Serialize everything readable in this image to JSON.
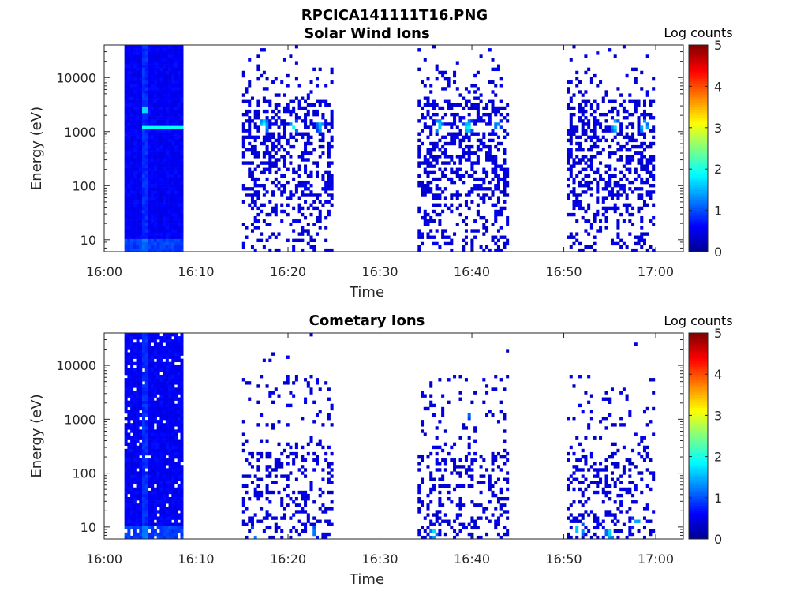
{
  "figure_title": "RPCICA141111T16.PNG",
  "colors": {
    "colormap": [
      "#00008f",
      "#0000ff",
      "#0080ff",
      "#00ffff",
      "#80ff80",
      "#ffff00",
      "#ff8000",
      "#ff0000",
      "#800000"
    ],
    "axis": "#262626",
    "background": "#ffffff"
  },
  "chart_data": [
    {
      "type": "heatmap",
      "title": "Solar Wind Ions",
      "xlabel": "Time",
      "ylabel": "Energy (eV)",
      "x_tick_labels": [
        "16:00",
        "16:10",
        "16:20",
        "16:30",
        "16:40",
        "16:50",
        "17:00"
      ],
      "x_range_minutes": [
        0,
        63
      ],
      "y_scale": "log",
      "y_tick_labels": [
        "10",
        "100",
        "1000",
        "10000"
      ],
      "y_range": [
        6,
        40000
      ],
      "colorbar": {
        "label": "Log counts",
        "range": [
          0,
          5
        ],
        "tick_labels": [
          "0",
          "1",
          "2",
          "3",
          "4",
          "5"
        ]
      },
      "dense_block": {
        "t_start_min": 2.2,
        "t_end_min": 8.3
      },
      "activity_bursts": [
        {
          "t_start_min": 15.0,
          "t_end_min": 24.7,
          "peaks": [
            {
              "t_min": 17.2,
              "energy_ev": 1300,
              "log_counts": 2.0
            },
            {
              "t_min": 20.4,
              "energy_ev": 1200,
              "log_counts": 1.8
            },
            {
              "t_min": 23.4,
              "energy_ev": 1300,
              "log_counts": 1.6
            }
          ]
        },
        {
          "t_start_min": 34.1,
          "t_end_min": 43.8,
          "peaks": [
            {
              "t_min": 36.2,
              "energy_ev": 1300,
              "log_counts": 1.8
            },
            {
              "t_min": 39.4,
              "energy_ev": 1200,
              "log_counts": 1.9
            },
            {
              "t_min": 42.6,
              "energy_ev": 1300,
              "log_counts": 1.4
            }
          ]
        },
        {
          "t_start_min": 50.3,
          "t_end_min": 59.8,
          "peaks": [
            {
              "t_min": 55.4,
              "energy_ev": 1300,
              "log_counts": 1.7
            },
            {
              "t_min": 58.6,
              "energy_ev": 1200,
              "log_counts": 1.8
            }
          ]
        }
      ]
    },
    {
      "type": "heatmap",
      "title": "Cometary Ions",
      "xlabel": "Time",
      "ylabel": "Energy (eV)",
      "x_tick_labels": [
        "16:00",
        "16:10",
        "16:20",
        "16:30",
        "16:40",
        "16:50",
        "17:00"
      ],
      "x_range_minutes": [
        0,
        63
      ],
      "y_scale": "log",
      "y_tick_labels": [
        "10",
        "100",
        "1000",
        "10000"
      ],
      "y_range": [
        6,
        40000
      ],
      "colorbar": {
        "label": "Log counts",
        "range": [
          0,
          5
        ],
        "tick_labels": [
          "0",
          "1",
          "2",
          "3",
          "4",
          "5"
        ]
      },
      "dense_block": {
        "t_start_min": 2.2,
        "t_end_min": 8.3
      },
      "activity_bursts": [
        {
          "t_start_min": 15.0,
          "t_end_min": 24.7,
          "peaks": [
            {
              "t_min": 16.3,
              "energy_ev": 8,
              "log_counts": 1.5
            },
            {
              "t_min": 22.6,
              "energy_ev": 8,
              "log_counts": 1.2
            }
          ]
        },
        {
          "t_start_min": 34.1,
          "t_end_min": 43.8,
          "peaks": [
            {
              "t_min": 35.7,
              "energy_ev": 8,
              "log_counts": 1.6
            },
            {
              "t_min": 39.4,
              "energy_ev": 1300,
              "log_counts": 1.2
            }
          ]
        },
        {
          "t_start_min": 50.3,
          "t_end_min": 59.8,
          "peaks": [
            {
              "t_min": 51.5,
              "energy_ev": 9,
              "log_counts": 2.0
            },
            {
              "t_min": 54.9,
              "energy_ev": 8,
              "log_counts": 1.8
            },
            {
              "t_min": 57.8,
              "energy_ev": 12,
              "log_counts": 1.6
            }
          ]
        }
      ]
    }
  ]
}
